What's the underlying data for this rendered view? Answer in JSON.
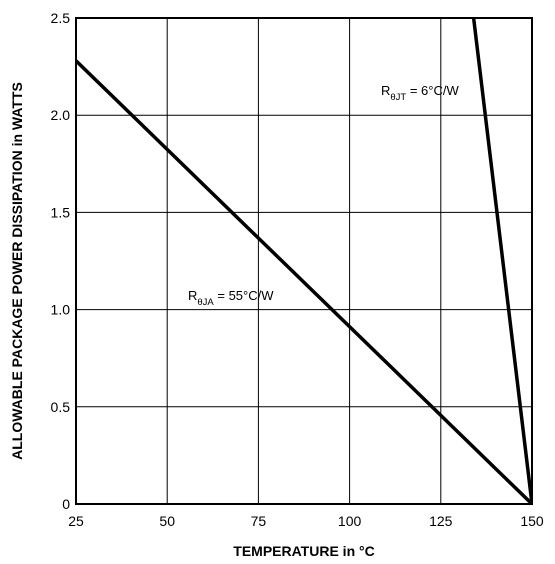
{
  "chart_data": {
    "type": "line",
    "title": "",
    "xlabel": "TEMPERATURE in °C",
    "ylabel": "ALLOWABLE PACKAGE POWER DISSIPATION in WATTS",
    "xlim": [
      25,
      150
    ],
    "ylim": [
      0,
      2.5
    ],
    "x_ticks": [
      25,
      50,
      75,
      100,
      125,
      150
    ],
    "y_ticks": [
      0,
      0.5,
      1.0,
      1.5,
      2.0,
      2.5
    ],
    "x_tick_labels": [
      "25",
      "50",
      "75",
      "100",
      "125",
      "150"
    ],
    "y_tick_labels": [
      "0",
      "0.5",
      "1.0",
      "1.5",
      "2.0",
      "2.5"
    ],
    "grid": true,
    "series": [
      {
        "name": "",
        "label_main": "R",
        "label_sub": "θJA",
        "label_rest": " = 55°C/W",
        "color": "#000000",
        "points": [
          [
            25,
            2.28
          ],
          [
            150,
            0
          ]
        ]
      },
      {
        "name": "",
        "label_main": "R",
        "label_sub": "θJT",
        "label_rest": " = 6°C/W",
        "color": "#000000",
        "points": [
          [
            134,
            2.5
          ],
          [
            150,
            0
          ]
        ]
      }
    ]
  }
}
